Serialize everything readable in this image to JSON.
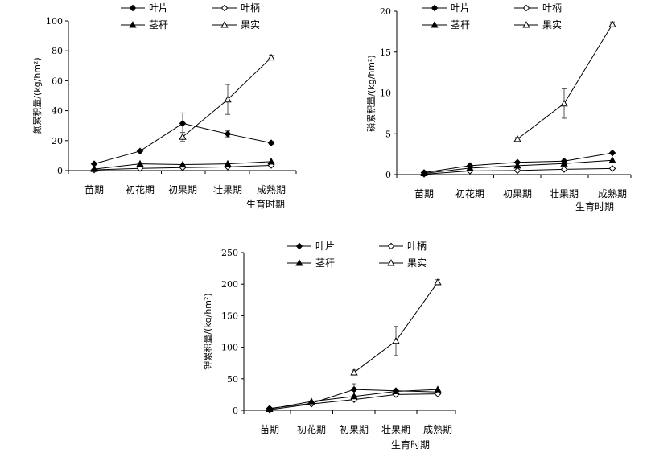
{
  "chart_data": [
    {
      "type": "line",
      "categories": [
        "苗期",
        "初花期",
        "初果期",
        "壮果期",
        "成熟期"
      ],
      "ylabel": "氮累积量/(kg/hm²)",
      "xlabel": "生育时期",
      "ylim": [
        0,
        100
      ],
      "yticks": [
        0,
        20,
        40,
        60,
        80,
        100
      ],
      "series": [
        {
          "name": "叶片",
          "values": [
            4.5,
            13,
            31.5,
            24.5,
            18.5
          ],
          "errors": [
            0.5,
            0.5,
            7,
            2,
            1
          ]
        },
        {
          "name": "叶柄",
          "values": [
            0.5,
            1.5,
            2,
            2.5,
            3.5
          ],
          "errors": [
            0,
            0,
            0,
            0,
            0
          ]
        },
        {
          "name": "茎秆",
          "values": [
            1,
            4.5,
            4,
            4.5,
            6
          ],
          "errors": [
            0,
            0,
            0,
            0,
            0
          ]
        },
        {
          "name": "果实",
          "values": [
            null,
            null,
            22.5,
            47.5,
            75.5
          ],
          "errors": [
            0,
            0,
            3,
            10,
            1.5
          ]
        }
      ]
    },
    {
      "type": "line",
      "categories": [
        "苗期",
        "初花期",
        "初果期",
        "壮果期",
        "成熟期"
      ],
      "ylabel": "磷累积量/(kg/hm²)",
      "xlabel": "生育时期",
      "ylim": [
        0,
        20
      ],
      "yticks": [
        0,
        5,
        10,
        15,
        20
      ],
      "series": [
        {
          "name": "叶片",
          "values": [
            0.25,
            1.1,
            1.5,
            1.65,
            2.65
          ],
          "errors": [
            0,
            0,
            0,
            0,
            0
          ]
        },
        {
          "name": "叶柄",
          "values": [
            0.05,
            0.45,
            0.5,
            0.65,
            0.75
          ],
          "errors": [
            0,
            0,
            0,
            0,
            0
          ]
        },
        {
          "name": "茎秆",
          "values": [
            0.15,
            0.8,
            1.1,
            1.35,
            1.75
          ],
          "errors": [
            0,
            0,
            0,
            0,
            0
          ]
        },
        {
          "name": "果实",
          "values": [
            null,
            null,
            4.35,
            8.7,
            18.4
          ],
          "errors": [
            0,
            0,
            0.2,
            1.8,
            0.3
          ]
        }
      ]
    },
    {
      "type": "line",
      "categories": [
        "苗期",
        "初花期",
        "初果期",
        "壮果期",
        "成熟期"
      ],
      "ylabel": "钾累积量/(kg/hm²)",
      "xlabel": "生育时期",
      "ylim": [
        0,
        250
      ],
      "yticks": [
        0,
        50,
        100,
        150,
        200,
        250
      ],
      "series": [
        {
          "name": "叶片",
          "values": [
            3,
            11,
            33,
            31,
            29
          ],
          "errors": [
            0,
            0,
            9,
            3,
            2
          ]
        },
        {
          "name": "叶柄",
          "values": [
            1,
            10,
            17,
            25,
            26
          ],
          "errors": [
            0,
            0,
            0,
            0,
            0
          ]
        },
        {
          "name": "茎秆",
          "values": [
            2,
            14,
            22,
            30,
            33
          ],
          "errors": [
            0,
            0,
            0,
            0,
            0
          ]
        },
        {
          "name": "果实",
          "values": [
            null,
            null,
            60,
            110,
            203
          ],
          "errors": [
            0,
            0,
            4,
            23,
            4
          ]
        }
      ]
    }
  ]
}
